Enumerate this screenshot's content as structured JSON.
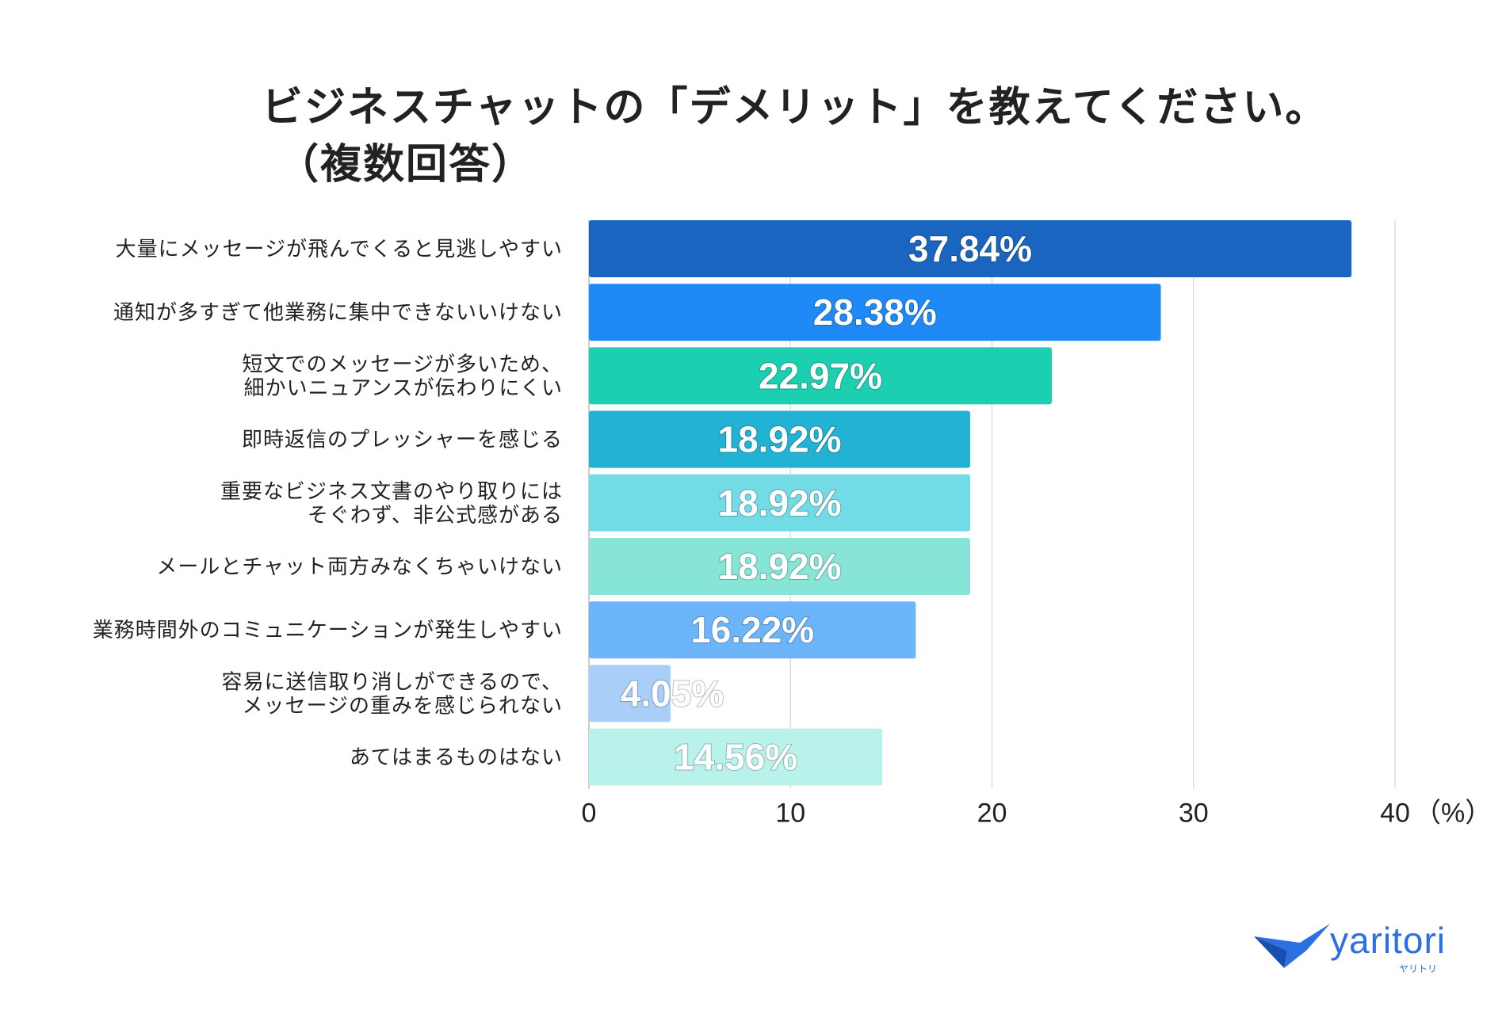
{
  "title": {
    "line1": "ビジネスチャットの「デメリット」を教えてください。",
    "line2": "（複数回答）"
  },
  "chart_data": {
    "type": "bar",
    "orientation": "horizontal",
    "title": "ビジネスチャットの「デメリット」を教えてください。（複数回答）",
    "xlabel": "",
    "ylabel": "",
    "unit_label": "（%）",
    "xlim": [
      0,
      40
    ],
    "ticks": [
      0,
      10,
      20,
      30,
      40
    ],
    "grid": true,
    "categories": [
      [
        "大量にメッセージが飛んでくると見逃しやすい"
      ],
      [
        "通知が多すぎて他業務に集中できないいけない"
      ],
      [
        "短文でのメッセージが多いため、",
        "細かいニュアンスが伝わりにくい"
      ],
      [
        "即時返信のプレッシャーを感じる"
      ],
      [
        "重要なビジネス文書のやり取りには",
        "そぐわず、非公式感がある"
      ],
      [
        "メールとチャット両方みなくちゃいけない"
      ],
      [
        "業務時間外のコミュニケーションが発生しやすい"
      ],
      [
        "容易に送信取り消しができるので、",
        "メッセージの重みを感じられない"
      ],
      [
        "あてはまるものはない"
      ]
    ],
    "values": [
      37.84,
      28.38,
      22.97,
      18.92,
      18.92,
      18.92,
      16.22,
      4.05,
      14.56
    ],
    "value_labels": [
      "37.84%",
      "28.38%",
      "22.97%",
      "18.92%",
      "18.92%",
      "18.92%",
      "16.22%",
      "4.05%",
      "14.56%"
    ],
    "colors": [
      "#1a65c0",
      "#1f8af5",
      "#1ccfb0",
      "#22b2d4",
      "#72dbe6",
      "#86e5d7",
      "#6db5fb",
      "#a9cff9",
      "#b8f2ea"
    ]
  },
  "logo": {
    "wordmark": "yaritori",
    "kana": "ヤリトリ",
    "color": "#2b6fe0"
  }
}
